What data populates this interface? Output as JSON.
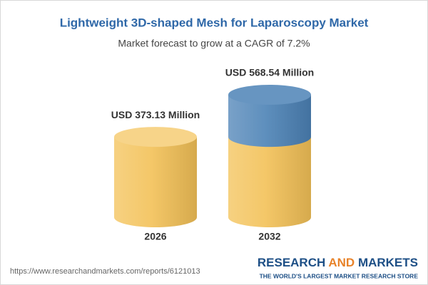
{
  "chart_data": {
    "type": "bar",
    "title": "Lightweight 3D-shaped Mesh for Laparoscopy Market",
    "subtitle": "Market forecast to grow at a CAGR of 7.2%",
    "categories": [
      "2026",
      "2032"
    ],
    "values": [
      373.13,
      568.54
    ],
    "value_labels": [
      "USD 373.13 Million",
      "USD 568.54 Million"
    ],
    "colors": [
      "#f3c157",
      "#4c82b6"
    ]
  },
  "footer": {
    "url": "https://www.researchandmarkets.com/reports/6121013",
    "brand": [
      "RESEARCH",
      "AND",
      "MARKETS"
    ],
    "tagline": "THE WORLD'S LARGEST MARKET RESEARCH STORE"
  }
}
